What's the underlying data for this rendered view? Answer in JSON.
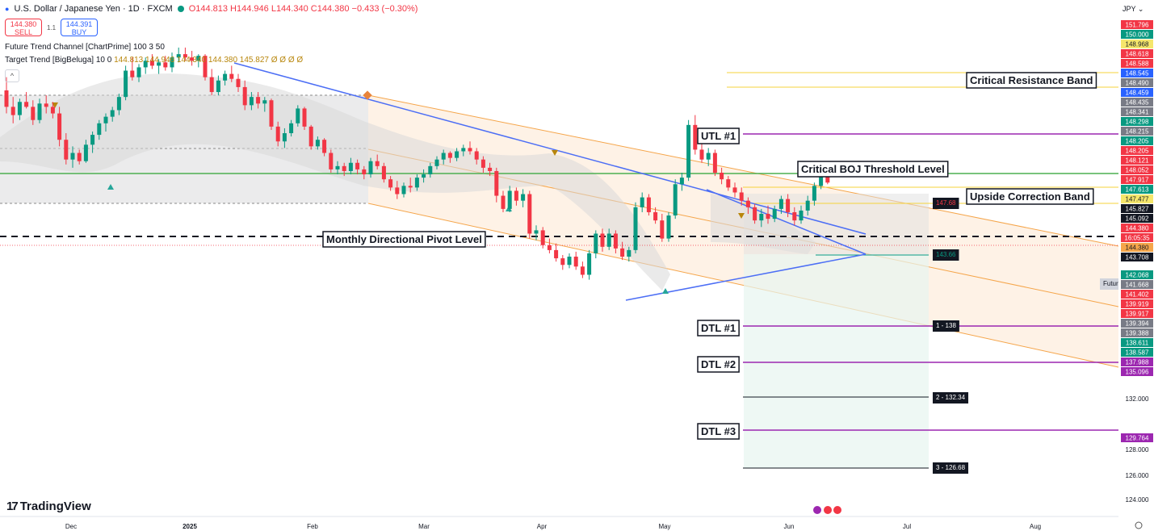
{
  "header": {
    "symbol": "U.S. Dollar / Japanese Yen · 1D · FXCM",
    "ohlc": "O144.813 H144.946 L144.340 C144.380 −0.433 (−0.30%)",
    "sell_price": "144.380",
    "sell_label": "SELL",
    "buy_price": "144.391",
    "buy_label": "BUY",
    "spread": "1.1",
    "indicator1": "Future Trend Channel [ChartPrime] 100 3 50",
    "indicator2_name": "Target Trend [BigBeluga] 10 0",
    "indicator2_values": "144.813  144.946  144.340  144.380  145.827  Ø  Ø  Ø  Ø",
    "currency": "JPY",
    "logo": "TradingView"
  },
  "colors": {
    "up": "#089981",
    "down": "#f23645",
    "trendline": "#4c6ef5",
    "channel": "#f5a54a",
    "green_level": "#4caf50",
    "purple_level": "#9c27b0",
    "yellow_level": "#f5d33b"
  },
  "chart_data": {
    "type": "candlestick",
    "x_ticks": [
      "Dec",
      "2025",
      "Feb",
      "Mar",
      "Apr",
      "May",
      "Jun",
      "Jul",
      "Aug"
    ],
    "y_ticks": [
      "132.000",
      "128.000",
      "126.000",
      "124.000"
    ],
    "y_range": [
      123.5,
      152.5
    ],
    "candles": [
      [
        150.0,
        150.8,
        148.6,
        149.0
      ],
      [
        149.0,
        149.6,
        148.0,
        148.5
      ],
      [
        148.5,
        149.5,
        148.2,
        149.3
      ],
      [
        149.3,
        149.9,
        148.9,
        149.0
      ],
      [
        149.0,
        149.4,
        147.9,
        148.2
      ],
      [
        148.2,
        149.5,
        148.0,
        149.2
      ],
      [
        149.2,
        149.7,
        148.6,
        149.0
      ],
      [
        149.0,
        149.3,
        148.3,
        148.6
      ],
      [
        148.6,
        149.0,
        146.6,
        147.0
      ],
      [
        147.0,
        147.4,
        145.5,
        145.8
      ],
      [
        145.8,
        146.6,
        145.3,
        146.2
      ],
      [
        146.2,
        146.4,
        145.5,
        145.7
      ],
      [
        145.7,
        147.0,
        145.6,
        146.7
      ],
      [
        146.7,
        147.5,
        146.2,
        147.3
      ],
      [
        147.3,
        148.2,
        147.0,
        148.0
      ],
      [
        148.0,
        148.6,
        147.5,
        148.4
      ],
      [
        148.4,
        149.0,
        148.1,
        148.8
      ],
      [
        148.8,
        149.8,
        148.5,
        149.6
      ],
      [
        149.6,
        151.5,
        149.4,
        151.2
      ],
      [
        151.2,
        152.0,
        150.6,
        150.8
      ],
      [
        150.8,
        151.6,
        150.5,
        151.4
      ],
      [
        151.4,
        152.0,
        151.0,
        151.8
      ],
      [
        151.8,
        152.2,
        151.3,
        151.5
      ],
      [
        151.5,
        151.9,
        151.0,
        151.7
      ],
      [
        151.7,
        152.1,
        151.2,
        151.4
      ],
      [
        151.4,
        152.3,
        151.1,
        152.0
      ],
      [
        152.0,
        152.6,
        151.7,
        152.2
      ],
      [
        152.2,
        152.6,
        151.8,
        152.0
      ],
      [
        152.0,
        152.4,
        151.5,
        151.8
      ],
      [
        151.8,
        152.2,
        151.4,
        152.1
      ],
      [
        152.1,
        152.2,
        150.6,
        150.8
      ],
      [
        150.8,
        151.3,
        149.7,
        149.9
      ],
      [
        149.9,
        150.9,
        149.7,
        150.6
      ],
      [
        150.6,
        151.2,
        150.3,
        151.0
      ],
      [
        151.0,
        151.5,
        150.5,
        150.7
      ],
      [
        150.7,
        151.0,
        149.9,
        150.2
      ],
      [
        150.2,
        150.6,
        148.8,
        149.1
      ],
      [
        149.1,
        149.9,
        148.8,
        149.6
      ],
      [
        149.6,
        149.9,
        148.9,
        149.2
      ],
      [
        149.2,
        149.6,
        148.7,
        149.4
      ],
      [
        149.4,
        149.5,
        147.6,
        147.8
      ],
      [
        147.8,
        148.1,
        146.6,
        146.9
      ],
      [
        146.9,
        147.7,
        146.5,
        147.4
      ],
      [
        147.4,
        148.2,
        147.2,
        148.0
      ],
      [
        148.0,
        149.1,
        147.8,
        148.9
      ],
      [
        148.9,
        149.0,
        147.6,
        147.8
      ],
      [
        147.8,
        147.9,
        146.4,
        146.6
      ],
      [
        146.6,
        147.2,
        146.4,
        147.0
      ],
      [
        147.0,
        147.1,
        146.0,
        146.2
      ],
      [
        146.2,
        146.4,
        145.0,
        145.2
      ],
      [
        145.2,
        145.7,
        144.9,
        145.4
      ],
      [
        145.4,
        145.6,
        144.8,
        145.1
      ],
      [
        145.1,
        145.9,
        144.9,
        145.6
      ],
      [
        145.6,
        145.8,
        144.9,
        145.2
      ],
      [
        145.2,
        145.4,
        144.6,
        144.9
      ],
      [
        144.9,
        145.9,
        144.7,
        145.7
      ],
      [
        145.7,
        146.1,
        145.2,
        145.4
      ],
      [
        145.4,
        145.6,
        144.4,
        144.6
      ],
      [
        144.6,
        144.8,
        143.9,
        144.1
      ],
      [
        144.1,
        144.5,
        143.4,
        143.7
      ],
      [
        143.7,
        144.4,
        143.5,
        144.2
      ],
      [
        144.2,
        144.7,
        143.8,
        144.1
      ],
      [
        144.1,
        144.9,
        143.9,
        144.7
      ],
      [
        144.7,
        145.2,
        144.4,
        144.9
      ],
      [
        144.9,
        145.6,
        144.7,
        145.4
      ],
      [
        145.4,
        146.0,
        145.2,
        145.8
      ],
      [
        145.8,
        146.4,
        145.5,
        146.2
      ],
      [
        146.2,
        146.3,
        145.6,
        145.9
      ],
      [
        145.9,
        146.5,
        145.7,
        146.3
      ],
      [
        146.3,
        146.7,
        146.0,
        146.5
      ],
      [
        146.5,
        146.9,
        146.1,
        146.3
      ],
      [
        146.3,
        146.5,
        145.5,
        145.8
      ],
      [
        145.8,
        146.0,
        145.0,
        145.3
      ],
      [
        145.3,
        145.6,
        144.8,
        145.1
      ],
      [
        145.1,
        145.3,
        143.2,
        143.6
      ],
      [
        143.6,
        143.9,
        142.6,
        142.8
      ],
      [
        142.8,
        144.2,
        142.6,
        143.9
      ],
      [
        143.9,
        144.1,
        143.0,
        143.3
      ],
      [
        143.3,
        144.0,
        142.9,
        143.7
      ],
      [
        143.7,
        143.9,
        141.0,
        141.3
      ],
      [
        141.3,
        141.8,
        140.9,
        141.5
      ],
      [
        141.5,
        141.7,
        140.4,
        140.6
      ],
      [
        140.6,
        141.0,
        140.1,
        140.3
      ],
      [
        140.3,
        140.7,
        139.6,
        139.8
      ],
      [
        139.8,
        140.0,
        139.1,
        139.4
      ],
      [
        139.4,
        140.1,
        139.2,
        139.9
      ],
      [
        139.9,
        140.2,
        139.1,
        139.3
      ],
      [
        139.3,
        139.6,
        138.6,
        138.8
      ],
      [
        138.8,
        140.3,
        138.5,
        140.1
      ],
      [
        140.1,
        141.5,
        139.8,
        141.3
      ],
      [
        141.3,
        141.6,
        140.2,
        140.5
      ],
      [
        140.5,
        141.6,
        140.3,
        141.3
      ],
      [
        141.3,
        141.5,
        140.1,
        140.4
      ],
      [
        140.4,
        140.8,
        139.7,
        139.9
      ],
      [
        139.9,
        140.5,
        139.6,
        140.3
      ],
      [
        140.3,
        143.2,
        140.1,
        142.9
      ],
      [
        142.9,
        143.8,
        142.6,
        143.5
      ],
      [
        143.5,
        143.7,
        142.4,
        142.6
      ],
      [
        142.6,
        142.9,
        141.9,
        142.1
      ],
      [
        142.1,
        142.5,
        140.8,
        141.0
      ],
      [
        141.0,
        142.6,
        140.8,
        142.4
      ],
      [
        142.4,
        144.6,
        142.2,
        144.3
      ],
      [
        144.3,
        145.0,
        143.9,
        144.7
      ],
      [
        144.7,
        148.2,
        144.5,
        147.9
      ],
      [
        147.9,
        148.5,
        146.1,
        146.4
      ],
      [
        146.4,
        146.9,
        145.6,
        145.8
      ],
      [
        145.8,
        146.5,
        145.4,
        146.2
      ],
      [
        146.2,
        146.4,
        144.8,
        145.0
      ],
      [
        145.0,
        145.3,
        144.3,
        144.6
      ],
      [
        144.6,
        144.8,
        143.9,
        144.1
      ],
      [
        144.1,
        144.4,
        143.5,
        143.8
      ],
      [
        143.8,
        144.1,
        143.0,
        143.3
      ],
      [
        143.3,
        143.5,
        142.5,
        142.9
      ],
      [
        142.9,
        143.1,
        141.9,
        142.1
      ],
      [
        142.1,
        142.8,
        141.7,
        142.5
      ],
      [
        142.5,
        143.0,
        141.9,
        142.2
      ],
      [
        142.2,
        143.0,
        142.0,
        142.8
      ],
      [
        142.8,
        143.6,
        142.5,
        143.4
      ],
      [
        143.4,
        143.7,
        142.3,
        142.6
      ],
      [
        142.6,
        142.9,
        141.8,
        142.1
      ],
      [
        142.1,
        143.0,
        141.9,
        142.7
      ],
      [
        142.7,
        143.6,
        142.4,
        143.3
      ],
      [
        143.3,
        144.4,
        143.0,
        144.2
      ],
      [
        144.2,
        144.9,
        144.0,
        144.8
      ],
      [
        144.8,
        144.9,
        144.3,
        144.4
      ]
    ],
    "price_axis_labels": [
      {
        "text": "151.796",
        "bg": "#f23645"
      },
      {
        "text": "150.000",
        "bg": "#089981"
      },
      {
        "text": "148.968",
        "bg": "#f5e66b",
        "fg": "#131722"
      },
      {
        "text": "148.618",
        "bg": "#f23645"
      },
      {
        "text": "148.588",
        "bg": "#f23645"
      },
      {
        "text": "148.545",
        "bg": "#2962ff"
      },
      {
        "text": "148.490",
        "bg": "#787b86"
      },
      {
        "text": "148.459",
        "bg": "#2962ff"
      },
      {
        "text": "148.435",
        "bg": "#787b86"
      },
      {
        "text": "148.341",
        "bg": "#787b86"
      },
      {
        "text": "148.298",
        "bg": "#089981"
      },
      {
        "text": "148.215",
        "bg": "#787b86"
      },
      {
        "text": "148.205",
        "bg": "#089981"
      },
      {
        "text": "148.205",
        "bg": "#f23645"
      },
      {
        "text": "148.121",
        "bg": "#f23645"
      },
      {
        "text": "148.052",
        "bg": "#f23645"
      },
      {
        "text": "147.917",
        "bg": "#f23645"
      },
      {
        "text": "147.613",
        "bg": "#089981"
      },
      {
        "text": "147.477",
        "bg": "#f5e66b",
        "fg": "#131722"
      },
      {
        "text": "145.827",
        "bg": "#131722"
      },
      {
        "text": "145.092",
        "bg": "#131722"
      },
      {
        "text": "144.380",
        "bg": "#f23645"
      },
      {
        "text": "16:05:35",
        "bg": "#f23645"
      },
      {
        "text": "144.380",
        "bg": "#f5a54a",
        "fg": "#131722"
      },
      {
        "text": "143.708",
        "bg": "#131722"
      },
      {
        "text": "142.068",
        "bg": "#089981"
      },
      {
        "text": "141.668",
        "bg": "#787b86"
      },
      {
        "text": "141.402",
        "bg": "#f23645"
      },
      {
        "text": "139.919",
        "bg": "#f23645"
      },
      {
        "text": "139.917",
        "bg": "#f23645"
      },
      {
        "text": "139.394",
        "bg": "#787b86"
      },
      {
        "text": "139.388",
        "bg": "#787b86"
      },
      {
        "text": "138.611",
        "bg": "#089981"
      },
      {
        "text": "138.587",
        "bg": "#089981"
      },
      {
        "text": "137.988",
        "bg": "#9c27b0"
      },
      {
        "text": "135.096",
        "bg": "#9c27b0"
      },
      {
        "text": "129.764",
        "bg": "#9c27b0"
      }
    ],
    "annotations": {
      "critical_resistance": "Critical Resistance Band",
      "utl1": "UTL #1",
      "boj": "Critical BOJ Threshold Level",
      "upside_band": "Upside Correction Band",
      "pivot": "Monthly Directional Pivot Level",
      "dtl1": "DTL #1",
      "dtl2": "DTL #2",
      "dtl3": "DTL #3",
      "target_up": "147.68",
      "target_mid": "143.66",
      "target1": "1 - 138",
      "target2": "2 - 132.34",
      "target3": "3 - 126.68",
      "future_tag": "Futur"
    }
  }
}
